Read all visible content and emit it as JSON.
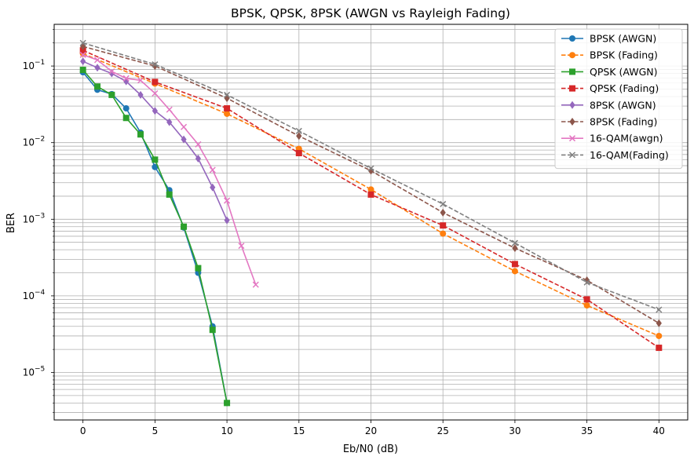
{
  "chart_data": {
    "type": "line",
    "title": "BPSK, QPSK, 8PSK (AWGN vs Rayleigh Fading)",
    "xlabel": "Eb/N0 (dB)",
    "ylabel": "BER",
    "xlim": [
      -2,
      42
    ],
    "ylim": [
      2.4e-06,
      0.35
    ],
    "yscale": "log",
    "grid": true,
    "grid_minor": true,
    "legend_position": "top-right",
    "x_ticks": [
      0,
      5,
      10,
      15,
      20,
      25,
      30,
      35,
      40
    ],
    "x_tick_labels": [
      "0",
      "5",
      "10",
      "15",
      "20",
      "25",
      "30",
      "35",
      "40"
    ],
    "y_ticks": [
      1e-05,
      0.0001,
      0.001,
      0.01,
      0.1
    ],
    "y_tick_bases": [
      "10",
      "10",
      "10",
      "10",
      "10"
    ],
    "y_tick_exps": [
      "−5",
      "−4",
      "−3",
      "−2",
      "−1"
    ],
    "series": [
      {
        "name": "BPSK (AWGN)",
        "color": "#1f77b4",
        "dash": "solid",
        "marker": "circle",
        "x": [
          0,
          1,
          2,
          3,
          4,
          5,
          6,
          7,
          8,
          9,
          10
        ],
        "y": [
          0.083,
          0.049,
          0.043,
          0.028,
          0.0135,
          0.0048,
          0.0024,
          0.00078,
          0.0002,
          4e-05,
          4e-06
        ]
      },
      {
        "name": "BPSK (Fading)",
        "color": "#ff7f0e",
        "dash": "dashed",
        "marker": "circle",
        "x": [
          0,
          5,
          10,
          15,
          20,
          25,
          30,
          35,
          40
        ],
        "y": [
          0.145,
          0.059,
          0.0238,
          0.0083,
          0.00245,
          0.00065,
          0.00021,
          7.5e-05,
          3e-05
        ]
      },
      {
        "name": "QPSK (AWGN)",
        "color": "#2ca02c",
        "dash": "solid",
        "marker": "square",
        "x": [
          0,
          1,
          2,
          3,
          4,
          5,
          6,
          7,
          8,
          9,
          10
        ],
        "y": [
          0.089,
          0.054,
          0.042,
          0.021,
          0.0128,
          0.006,
          0.0021,
          0.0008,
          0.00023,
          3.6e-05,
          4e-06
        ]
      },
      {
        "name": "QPSK (Fading)",
        "color": "#d62728",
        "dash": "dashed",
        "marker": "square",
        "x": [
          0,
          5,
          10,
          15,
          20,
          25,
          30,
          35,
          40
        ],
        "y": [
          0.16,
          0.062,
          0.028,
          0.0073,
          0.0021,
          0.00083,
          0.00026,
          9e-05,
          2.1e-05
        ]
      },
      {
        "name": "8PSK (AWGN)",
        "color": "#9467bd",
        "dash": "solid",
        "marker": "diamond",
        "x": [
          0,
          1,
          2,
          3,
          4,
          5,
          6,
          7,
          8,
          9,
          10
        ],
        "y": [
          0.115,
          0.095,
          0.08,
          0.063,
          0.042,
          0.026,
          0.0185,
          0.011,
          0.0062,
          0.0026,
          0.00097
        ]
      },
      {
        "name": "8PSK (Fading)",
        "color": "#8c564b",
        "dash": "dashed",
        "marker": "diamond",
        "x": [
          0,
          5,
          10,
          15,
          20,
          25,
          30,
          35,
          40
        ],
        "y": [
          0.18,
          0.1,
          0.038,
          0.0122,
          0.0043,
          0.00122,
          0.00042,
          0.00016,
          4.4e-05
        ]
      },
      {
        "name": "16-QAM(awgn)",
        "color": "#e377c2",
        "dash": "solid",
        "marker": "x",
        "x": [
          0,
          1,
          2,
          3,
          4,
          5,
          6,
          7,
          8,
          9,
          10,
          11,
          12
        ],
        "y": [
          0.14,
          0.12,
          0.085,
          0.069,
          0.065,
          0.044,
          0.027,
          0.016,
          0.0095,
          0.0044,
          0.00175,
          0.00045,
          0.00014
        ]
      },
      {
        "name": "16-QAM(Fading)",
        "color": "#7f7f7f",
        "dash": "dashed",
        "marker": "x",
        "x": [
          0,
          5,
          10,
          15,
          20,
          25,
          30,
          35,
          40
        ],
        "y": [
          0.2,
          0.105,
          0.042,
          0.0142,
          0.0046,
          0.00158,
          0.00049,
          0.00015,
          6.6e-05
        ]
      }
    ]
  }
}
